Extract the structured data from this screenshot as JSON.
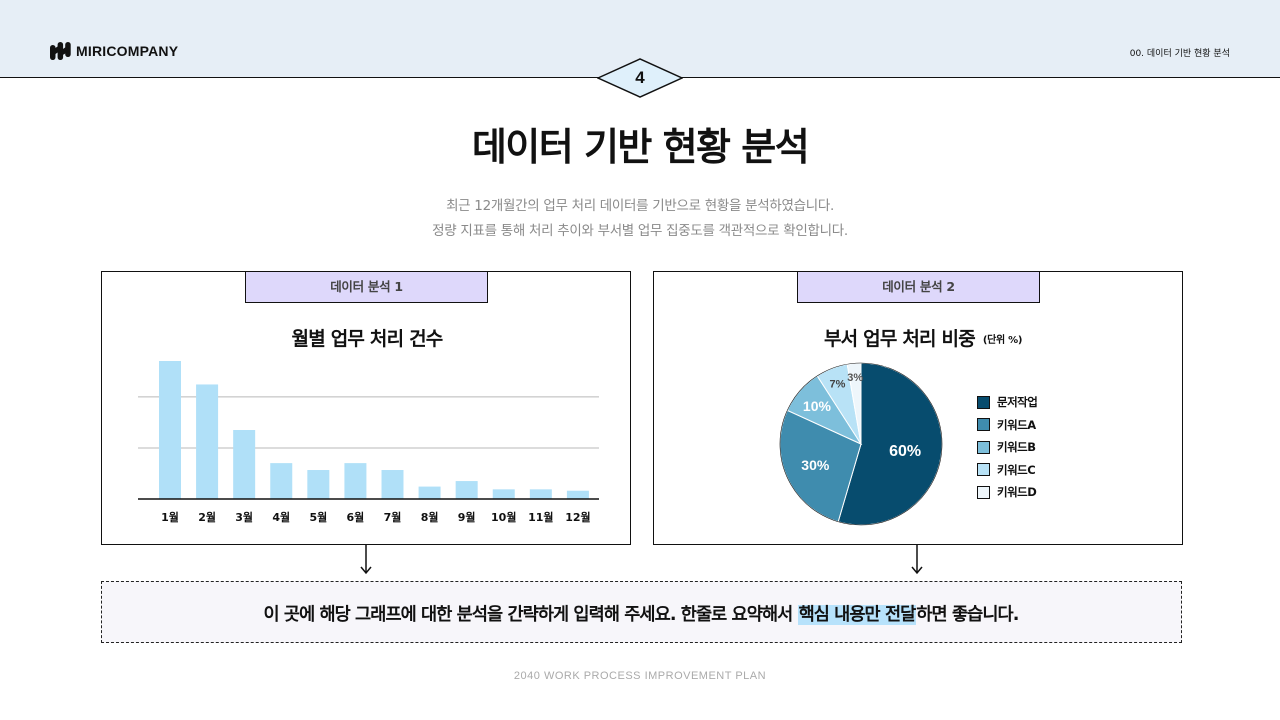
{
  "header": {
    "logo_text": "MIRICOMPANY",
    "section_label": "00. 데이터 기반 현황 분석",
    "page_number": "4"
  },
  "title": "데이터 기반 현황 분석",
  "subtitle_lines": [
    "최근 12개월간의 업무 처리 데이터를 기반으로 현황을 분석하였습니다.",
    "정량 지표를 통해 처리 추이와 부서별 업무 집중도를 객관적으로 확인합니다."
  ],
  "panel1": {
    "tag": "데이터 분석 1",
    "title": "월별 업무 처리 건수"
  },
  "panel2": {
    "tag": "데이터 분석 2",
    "title": "부서 업무 처리 비중",
    "unit": "(단위 %)"
  },
  "chart_data": [
    {
      "type": "bar",
      "title": "월별 업무 처리 건수",
      "categories": [
        "1월",
        "2월",
        "3월",
        "4월",
        "5월",
        "6월",
        "7월",
        "8월",
        "9월",
        "10월",
        "11월",
        "12월"
      ],
      "values": [
        100,
        83,
        50,
        26,
        21,
        26,
        21,
        9,
        13,
        7,
        7,
        6
      ],
      "ylim": [
        0,
        100
      ],
      "gridlines": [
        37,
        74
      ],
      "bar_color": "#b0e0f8"
    },
    {
      "type": "pie",
      "title": "부서 업무 처리 비중",
      "unit": "(단위 %)",
      "labels": [
        "문저작업",
        "키워드A",
        "키워드B",
        "키워드C",
        "키워드D"
      ],
      "values": [
        60,
        30,
        10,
        7,
        3
      ],
      "colors": [
        "#074c6e",
        "#3f8cae",
        "#7dbfdb",
        "#b8e2f6",
        "#eef6fb"
      ],
      "label_colors": [
        "#ffffff",
        "#ffffff",
        "#ffffff",
        "#444444",
        "#555555"
      ],
      "legend_position": "right"
    }
  ],
  "summary": {
    "before": "이 곳에 해당 그래프에 대한 분석을 간략하게 입력해 주세요. 한줄로 요약해서 ",
    "highlight": "핵심 내용만 전달",
    "after": "하면 좋습니다."
  },
  "footer": "2040 WORK PROCESS IMPROVEMENT PLAN"
}
